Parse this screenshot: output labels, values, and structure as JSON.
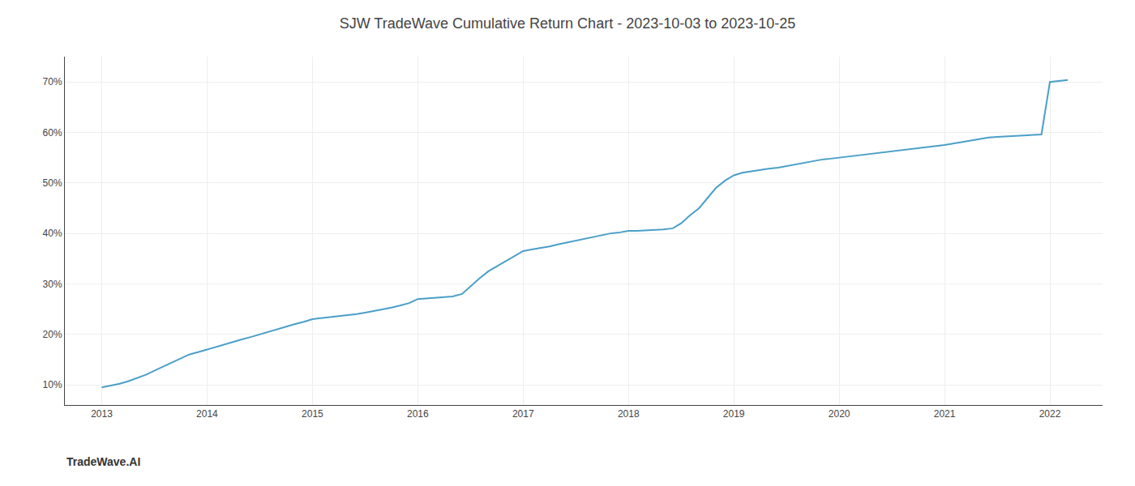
{
  "chart_data": {
    "type": "line",
    "title": "SJW TradeWave Cumulative Return Chart - 2023-10-03 to 2023-10-25",
    "annotations": [
      "TradeWave.AI"
    ],
    "color": "#4a9fc8",
    "grid": true,
    "x": [
      2013.0,
      2013.08,
      2013.17,
      2013.25,
      2013.33,
      2013.42,
      2013.5,
      2013.58,
      2013.67,
      2013.75,
      2013.83,
      2013.92,
      2014.0,
      2014.08,
      2014.17,
      2014.25,
      2014.33,
      2014.42,
      2014.5,
      2014.58,
      2014.67,
      2014.75,
      2014.83,
      2014.92,
      2015.0,
      2015.08,
      2015.17,
      2015.25,
      2015.33,
      2015.42,
      2015.5,
      2015.58,
      2015.67,
      2015.75,
      2015.83,
      2015.92,
      2016.0,
      2016.08,
      2016.17,
      2016.25,
      2016.33,
      2016.42,
      2016.5,
      2016.58,
      2016.67,
      2016.75,
      2016.83,
      2016.92,
      2017.0,
      2017.08,
      2017.17,
      2017.25,
      2017.33,
      2017.42,
      2017.5,
      2017.58,
      2017.67,
      2017.75,
      2017.83,
      2017.92,
      2018.0,
      2018.08,
      2018.17,
      2018.25,
      2018.33,
      2018.42,
      2018.5,
      2018.58,
      2018.67,
      2018.75,
      2018.83,
      2018.92,
      2019.0,
      2019.08,
      2019.17,
      2019.25,
      2019.33,
      2019.42,
      2019.5,
      2019.58,
      2019.67,
      2019.75,
      2019.83,
      2019.92,
      2020.0,
      2020.08,
      2020.17,
      2020.25,
      2020.33,
      2020.42,
      2020.5,
      2020.58,
      2020.67,
      2020.75,
      2020.83,
      2020.92,
      2021.0,
      2021.08,
      2021.17,
      2021.25,
      2021.33,
      2021.42,
      2021.5,
      2021.58,
      2021.67,
      2021.75,
      2021.83,
      2021.92,
      2022.0,
      2022.08,
      2022.17
    ],
    "values": [
      9.5,
      9.8,
      10.2,
      10.7,
      11.3,
      12.0,
      12.8,
      13.6,
      14.4,
      15.2,
      16.0,
      16.5,
      17.0,
      17.5,
      18.0,
      18.5,
      19.0,
      19.5,
      20.0,
      20.5,
      21.0,
      21.5,
      22.0,
      22.5,
      23.0,
      23.2,
      23.4,
      23.6,
      23.8,
      24.0,
      24.3,
      24.6,
      25.0,
      25.3,
      25.7,
      26.2,
      27.0,
      27.1,
      27.2,
      27.3,
      27.5,
      28.0,
      29.5,
      31.0,
      32.5,
      33.5,
      34.5,
      35.5,
      36.5,
      36.8,
      37.1,
      37.4,
      37.8,
      38.2,
      38.6,
      39.0,
      39.4,
      39.7,
      40.0,
      40.2,
      40.5,
      40.5,
      40.6,
      40.7,
      40.8,
      41.0,
      42.0,
      43.5,
      45.0,
      47.0,
      49.0,
      50.5,
      51.5,
      52.0,
      52.3,
      52.6,
      52.8,
      53.0,
      53.3,
      53.6,
      54.0,
      54.3,
      54.6,
      54.8,
      55.0,
      55.2,
      55.4,
      55.6,
      55.8,
      56.0,
      56.2,
      56.4,
      56.6,
      56.8,
      57.0,
      57.2,
      57.5,
      57.8,
      58.1,
      58.4,
      58.7,
      59.0,
      59.1,
      59.2,
      59.3,
      59.4,
      59.5,
      59.6,
      70.0,
      70.2,
      70.4
    ],
    "xlim": [
      2012.65,
      2022.5
    ],
    "xticks": [
      2013,
      2014,
      2015,
      2016,
      2017,
      2018,
      2019,
      2020,
      2021,
      2022
    ],
    "ylim": [
      6,
      75
    ],
    "yticks": [
      {
        "value": 10,
        "label": "10%"
      },
      {
        "value": 20,
        "label": "20%"
      },
      {
        "value": 30,
        "label": "30%"
      },
      {
        "value": 40,
        "label": "40%"
      },
      {
        "value": 50,
        "label": "50%"
      },
      {
        "value": 60,
        "label": "60%"
      },
      {
        "value": 70,
        "label": "70%"
      }
    ]
  }
}
